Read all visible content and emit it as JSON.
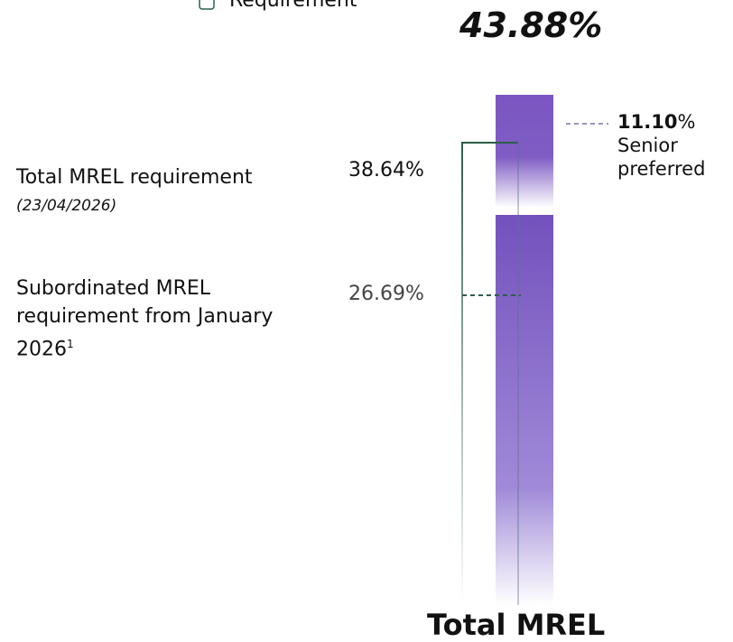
{
  "legend": {
    "label": "Requirement"
  },
  "total": {
    "value": "43.88%",
    "label": "Total MREL"
  },
  "senior": {
    "value": "11.10",
    "unit": "%",
    "lines": [
      "Senior",
      "preferred"
    ]
  },
  "requirements": [
    {
      "label": "Total MREL requirement",
      "note": "(23/04/2026)",
      "value": "38.64%"
    },
    {
      "label": "Subordinated MREL requirement from January 2026",
      "sup": "1",
      "value": "26.69%"
    }
  ]
}
